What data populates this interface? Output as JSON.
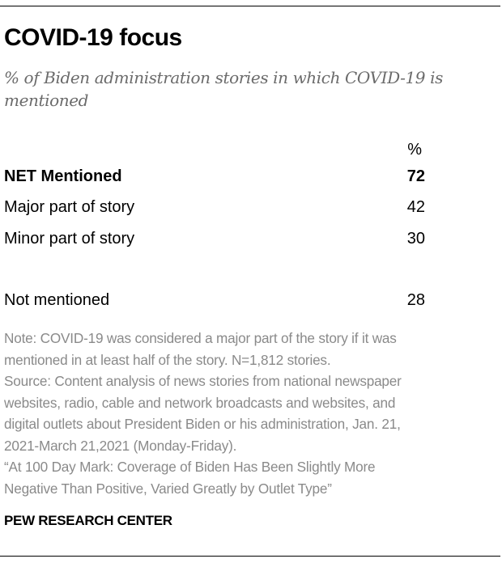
{
  "chart_data": {
    "type": "table",
    "title": "COVID-19 focus",
    "subtitle": "% of Biden administration stories in which COVID-19 is mentioned",
    "column_header": "%",
    "rows": [
      {
        "label": "NET Mentioned",
        "value": "72",
        "bold": true
      },
      {
        "label": "Major part of story",
        "value": "42",
        "bold": false
      },
      {
        "label": "Minor part of story",
        "value": "30",
        "bold": false
      },
      {
        "label": "Not mentioned",
        "value": "28",
        "bold": false
      }
    ]
  },
  "notes": [
    "Note: COVID-19 was considered a major part of the story if it was",
    "mentioned in at least half of the story. N=1,812 stories.",
    "Source: Content analysis of news stories from national newspaper",
    "websites, radio, cable and network broadcasts and websites, and",
    "digital outlets about President Biden or his administration, Jan. 21,",
    "2021-March 21,2021 (Monday-Friday).",
    "“At 100 Day Mark: Coverage of Biden Has Been Slightly More",
    "Negative Than Positive, Varied Greatly by Outlet Type”"
  ],
  "brand": "PEW RESEARCH CENTER"
}
